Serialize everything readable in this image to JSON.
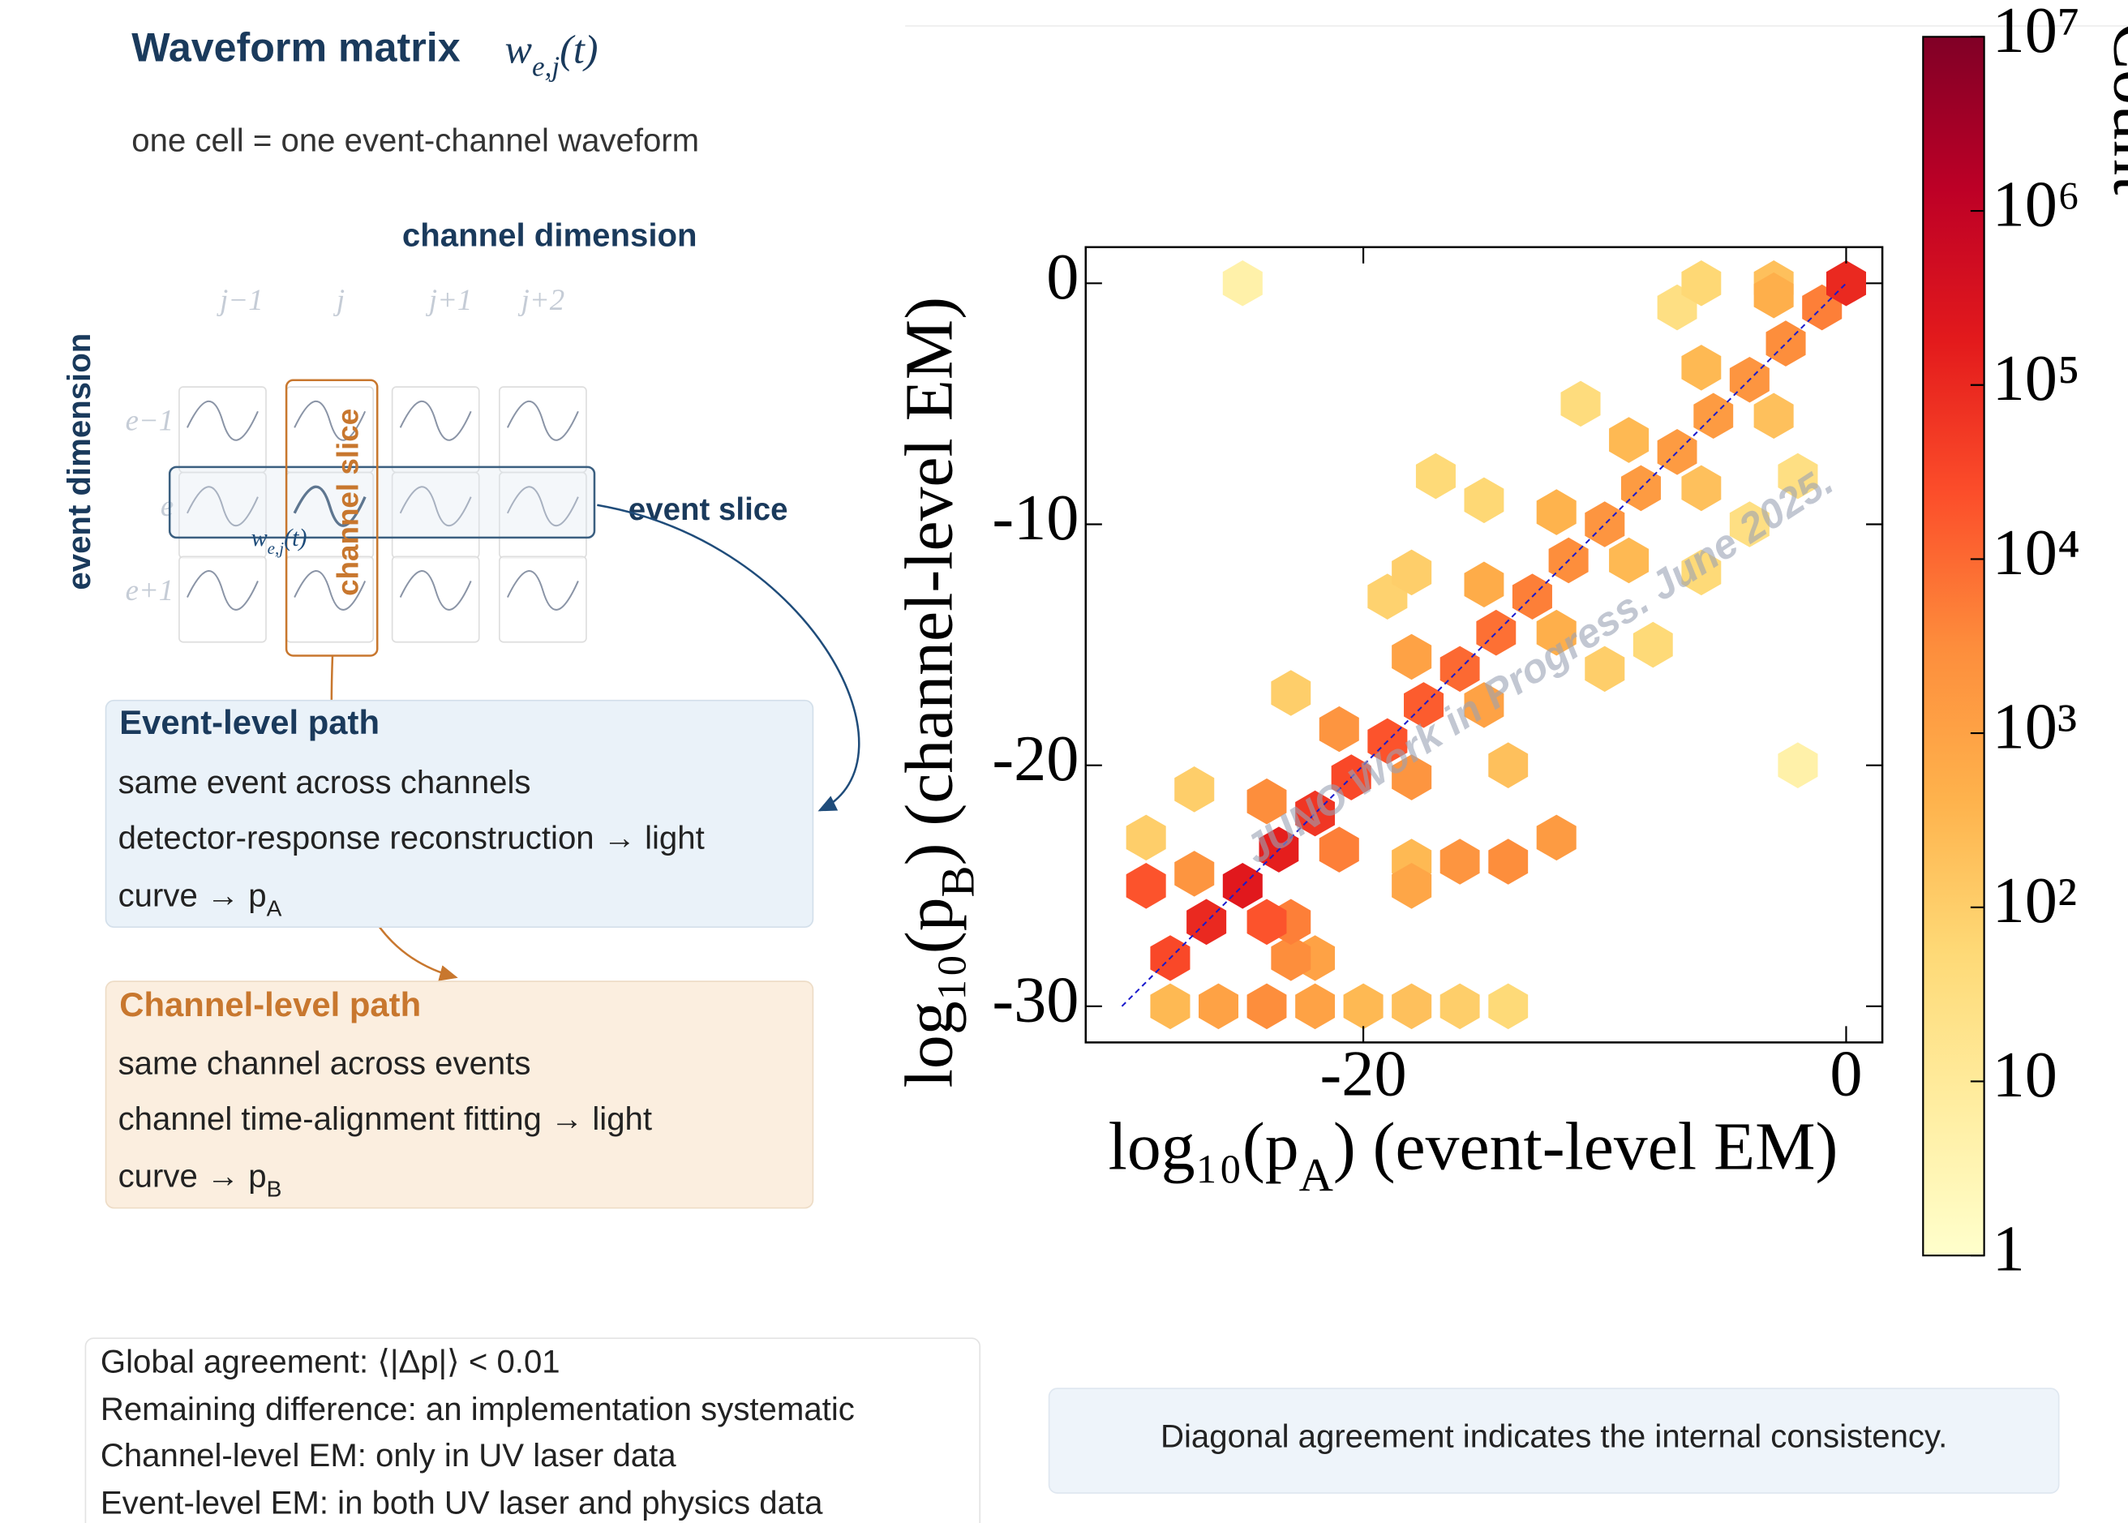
{
  "header": {
    "title": "Waveform matrix",
    "title_math": {
      "main": "w",
      "sub": "e,j",
      "tail": "(t)"
    },
    "subtitle": "one cell = one event-channel waveform"
  },
  "diagram": {
    "channel_axis": "channel dimension",
    "event_axis": "event dimension",
    "columns": [
      "j−1",
      "j",
      "j+1",
      "j+2"
    ],
    "rows": [
      "e−1",
      "e",
      "e+1"
    ],
    "channel_slice": "channel slice",
    "event_slice": "event slice",
    "cell_label": {
      "main": "w",
      "sub": "e,j",
      "tail": "(t)"
    }
  },
  "event_path": {
    "title": "Event-level path",
    "lines": [
      "same event across channels",
      "detector-response reconstruction → light"
    ],
    "last": {
      "main": "curve → p",
      "sub": "A"
    }
  },
  "channel_path": {
    "title": "Channel-level path",
    "lines": [
      "same channel across events",
      "channel time-alignment fitting → light"
    ],
    "last": {
      "main": "curve → p",
      "sub": "B"
    }
  },
  "notes": [
    "Global agreement:  ⟨|Δp|⟩ < 0.01",
    "Remaining difference:  an implementation systematic",
    "Channel-level EM: only in UV laser data",
    "Event-level EM: in both UV laser and physics data"
  ],
  "caption": "Diagonal agreement indicates the internal consistency.",
  "chart_data": {
    "type": "hexbin",
    "x_label": {
      "main": "log₁₀(p",
      "sub": "A",
      "tail": ")  (event-level EM)"
    },
    "y_label": {
      "main": "log₁₀(p",
      "sub": "B",
      "tail": ")  (channel-level EM)"
    },
    "watermark": "JUNO Work in Progress. June 2025.",
    "xlim": [
      -31.5,
      1.5
    ],
    "ylim": [
      -31.5,
      1.5
    ],
    "xticks": [
      -20,
      0
    ],
    "yticks": [
      0,
      -10,
      -20,
      -30
    ],
    "x": [
      -28,
      -26.5,
      -25,
      -23.5,
      -22,
      -20.5,
      -19,
      -17.5,
      -16,
      -14.5,
      -13,
      -11.5,
      -10,
      -8.5,
      -7,
      -5.5,
      -4,
      -2.5,
      -1,
      0,
      -27,
      -24,
      -21,
      -18,
      -15,
      -12,
      -9,
      -6,
      -3,
      -24,
      -21,
      -18,
      -15,
      -12,
      -9,
      -6,
      -3,
      -27,
      -23,
      -19,
      -15,
      -11,
      -7,
      -22,
      -18,
      -14,
      -10,
      -6,
      -2,
      -28,
      -26,
      -24,
      -22,
      -20,
      -18,
      -16,
      -14,
      -23,
      -23,
      -16,
      -14,
      -12,
      -18,
      -29,
      -29,
      -18,
      -17,
      -3,
      -6,
      -25,
      -8,
      -4,
      -2
    ],
    "y": [
      -28,
      -26.5,
      -25,
      -23.5,
      -22,
      -20.5,
      -19,
      -17.5,
      -16,
      -14.5,
      -13,
      -11.5,
      -10,
      -8.5,
      -7,
      -5.5,
      -4,
      -2.5,
      -1,
      0,
      -24.5,
      -21.5,
      -18.5,
      -15.5,
      -12.5,
      -9.5,
      -6.5,
      -3.5,
      -0.5,
      -26.5,
      -23.5,
      -20.5,
      -17.5,
      -14.5,
      -11.5,
      -8.5,
      -5.5,
      -21,
      -17,
      -13,
      -9,
      -5,
      -1,
      -28,
      -24,
      -20,
      -16,
      -12,
      -8,
      -30,
      -30,
      -30,
      -30,
      -30,
      -30,
      -30,
      -30,
      -28,
      -26.5,
      -24,
      -24,
      -23,
      -25,
      -25,
      -23,
      -12,
      -8,
      0,
      0,
      0,
      -15,
      -10,
      -20
    ],
    "values": [
      30000,
      100000,
      200000,
      150000,
      60000,
      30000,
      20000,
      15000,
      10000,
      8000,
      5000,
      3000,
      2000,
      1500,
      1500,
      1500,
      2000,
      3000,
      5000,
      100000,
      2000,
      3000,
      2000,
      1000,
      600,
      400,
      300,
      300,
      500,
      20000,
      5000,
      2000,
      1000,
      500,
      300,
      200,
      200,
      100,
      100,
      80,
      60,
      40,
      30,
      1000,
      300,
      200,
      100,
      50,
      30,
      300,
      1000,
      3000,
      1000,
      300,
      200,
      100,
      50,
      3000,
      5000,
      2000,
      3000,
      1500,
      800,
      20000,
      100,
      100,
      50,
      200,
      60,
      5,
      50,
      30,
      5
    ],
    "colormap": "YlOrRd",
    "colorbar": {
      "label": "Count",
      "lim": [
        1,
        10000000
      ],
      "log": true,
      "ticks": [
        1,
        10,
        {
          "value": 100,
          "label": "10²"
        },
        {
          "value": 1000,
          "label": "10³"
        },
        {
          "value": 10000,
          "label": "10⁴"
        },
        {
          "value": 100000,
          "label": "10⁵"
        },
        {
          "value": 1000000,
          "label": "10⁶"
        },
        {
          "value": 10000000,
          "label": "10⁷"
        }
      ]
    },
    "reference_line": {
      "x": [
        -30,
        0
      ],
      "y": [
        -30,
        0
      ],
      "color": "#1a1acc"
    }
  }
}
